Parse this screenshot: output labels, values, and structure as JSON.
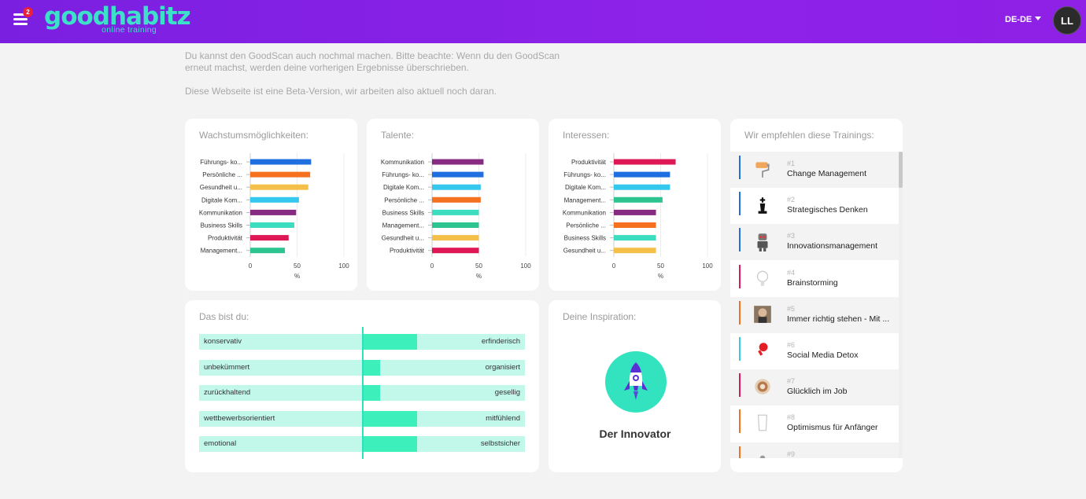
{
  "header": {
    "menu_badge": "2",
    "logo_word": "goodhabitz",
    "logo_sub": "online training",
    "language": "DE-DE",
    "avatar_initials": "LL"
  },
  "intro": {
    "line1": "Du kannst den GoodScan auch nochmal machen. Bitte beachte: Wenn du den GoodScan erneut machst, werden deine vorherigen Ergebnisse überschrieben.",
    "line2": "Diese Webseite ist eine Beta-Version, wir arbeiten also aktuell noch daran."
  },
  "cards": {
    "growth_title": "Wachstumsmöglichkeiten:",
    "talents_title": "Talente:",
    "interests_title": "Interessen:",
    "recommend_title": "Wir empfehlen diese Trainings:",
    "you_title": "Das bist du:",
    "inspiration_title": "Deine Inspiration:"
  },
  "chart_data": [
    {
      "type": "bar",
      "orientation": "horizontal",
      "title": "Wachstumsmöglichkeiten:",
      "categories": [
        "Führungs- ko...",
        "Persönliche ...",
        "Gesundheit u...",
        "Digitale Kom...",
        "Kommunikation",
        "Business Skills",
        "Produktivität",
        "Management..."
      ],
      "values": [
        65,
        64,
        62,
        52,
        49,
        47,
        41,
        37
      ],
      "colors": [
        "#1f6fe0",
        "#f5701f",
        "#f5c04a",
        "#35c8ee",
        "#862a82",
        "#3cdcc0",
        "#de1755",
        "#2ec48f"
      ],
      "xlim": [
        0,
        100
      ],
      "xticks": [
        0,
        50,
        100
      ],
      "xlabel": "%"
    },
    {
      "type": "bar",
      "orientation": "horizontal",
      "title": "Talente:",
      "categories": [
        "Kommunikation",
        "Führungs- ko...",
        "Digitale Kom...",
        "Persönliche ...",
        "Business Skills",
        "Management...",
        "Gesundheit u...",
        "Produktivität"
      ],
      "values": [
        55,
        55,
        52,
        52,
        50,
        50,
        50,
        50
      ],
      "colors": [
        "#862a82",
        "#1f6fe0",
        "#35c8ee",
        "#f5701f",
        "#3cdcc0",
        "#2ec48f",
        "#f5c04a",
        "#de1755"
      ],
      "xlim": [
        0,
        100
      ],
      "xticks": [
        0,
        50,
        100
      ],
      "xlabel": "%"
    },
    {
      "type": "bar",
      "orientation": "horizontal",
      "title": "Interessen:",
      "categories": [
        "Produktivität",
        "Führungs- ko...",
        "Digitale Kom...",
        "Management...",
        "Kommunikation",
        "Persönliche ...",
        "Business Skills",
        "Gesundheit u..."
      ],
      "values": [
        66,
        60,
        60,
        52,
        45,
        45,
        45,
        45
      ],
      "colors": [
        "#de1755",
        "#1f6fe0",
        "#35c8ee",
        "#2ec48f",
        "#862a82",
        "#f5701f",
        "#3cdcc0",
        "#f5c04a"
      ],
      "xlim": [
        0,
        100
      ],
      "xticks": [
        0,
        50,
        100
      ],
      "xlabel": "%"
    }
  ],
  "traits": [
    {
      "left": "konservativ",
      "right": "erfinderisch",
      "value": 0.34
    },
    {
      "left": "unbekümmert",
      "right": "organisiert",
      "value": 0.11
    },
    {
      "left": "zurückhaltend",
      "right": "gesellig",
      "value": 0.11
    },
    {
      "left": "wettbewerbsorientiert",
      "right": "mitfühlend",
      "value": 0.34
    },
    {
      "left": "emotional",
      "right": "selbstsicher",
      "value": 0.34
    }
  ],
  "inspiration": {
    "name": "Der Innovator",
    "icon": "rocket-icon",
    "circle_color": "#33e2bf"
  },
  "recommendations": [
    {
      "num": "#1",
      "title": "Change Management",
      "accent": "#1f6fe0",
      "icon": "paint-roller-icon"
    },
    {
      "num": "#2",
      "title": "Strategisches Denken",
      "accent": "#1f6fe0",
      "icon": "chess-king-icon"
    },
    {
      "num": "#3",
      "title": "Innovationsmanagement",
      "accent": "#1f6fe0",
      "icon": "robot-icon"
    },
    {
      "num": "#4",
      "title": "Brainstorming",
      "accent": "#de1755",
      "icon": "lightbulb-icon"
    },
    {
      "num": "#5",
      "title": "Immer richtig stehen - Mit ...",
      "accent": "#f5701f",
      "icon": "portrait-icon"
    },
    {
      "num": "#6",
      "title": "Social Media Detox",
      "accent": "#35c8ee",
      "icon": "pill-icon"
    },
    {
      "num": "#7",
      "title": "Glücklich im Job",
      "accent": "#de1755",
      "icon": "coffee-icon"
    },
    {
      "num": "#8",
      "title": "Optimismus für Anfänger",
      "accent": "#f5701f",
      "icon": "glass-icon"
    },
    {
      "num": "#9",
      "title": "",
      "accent": "#f5701f",
      "icon": "item-icon"
    }
  ]
}
